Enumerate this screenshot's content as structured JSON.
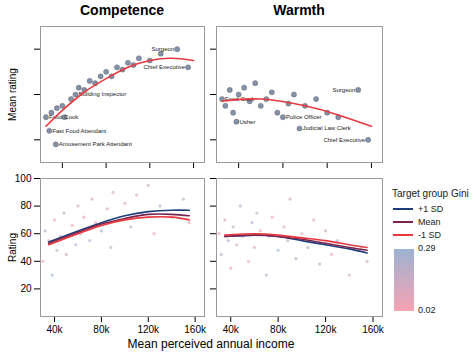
{
  "chart_data": [
    {
      "type": "scatter",
      "title": "Competence",
      "ylabel": "Mean rating",
      "xlim": [
        20000,
        170000
      ],
      "xticks": [
        40000,
        80000,
        120000,
        160000
      ],
      "ylim": [
        30,
        90
      ],
      "yticks": [
        40,
        60,
        80
      ],
      "tick_labels": false,
      "series": [
        {
          "type": "scatter",
          "color": "#6d7f99",
          "x": [
            25000,
            28000,
            34000,
            30000,
            35000,
            40000,
            42000,
            48000,
            52000,
            55000,
            60000,
            65000,
            70000,
            75000,
            80000,
            85000,
            90000,
            95000,
            100000,
            105000,
            110000,
            120000,
            130000,
            145000,
            155000
          ],
          "values": [
            50,
            44,
            38,
            52,
            54,
            55,
            50,
            58,
            60,
            63,
            62,
            66,
            65,
            68,
            70,
            68,
            72,
            71,
            74,
            73,
            76,
            75,
            78,
            80,
            72
          ],
          "labels": [
            "Food Cook",
            "Fast Food Attendant",
            "Amusement Park Attendant",
            null,
            null,
            null,
            null,
            null,
            "Building Inspector",
            null,
            null,
            null,
            null,
            null,
            null,
            null,
            null,
            null,
            null,
            null,
            null,
            null,
            null,
            "Surgeon",
            "Chief Executive"
          ]
        },
        {
          "type": "line",
          "color": "#e8393e",
          "x": [
            25000,
            40000,
            60000,
            80000,
            100000,
            120000,
            140000,
            160000
          ],
          "values": [
            46,
            53,
            61,
            67,
            72,
            75,
            76,
            75
          ]
        }
      ]
    },
    {
      "type": "scatter",
      "title": "Warmth",
      "xlim": [
        20000,
        170000
      ],
      "xticks": [
        40000,
        80000,
        120000,
        160000
      ],
      "ylim": [
        30,
        90
      ],
      "yticks": [
        40,
        60,
        80
      ],
      "tick_labels": false,
      "series": [
        {
          "type": "scatter",
          "color": "#6d7f99",
          "x": [
            25000,
            28000,
            32000,
            35000,
            38000,
            40000,
            45000,
            50000,
            55000,
            60000,
            65000,
            70000,
            75000,
            80000,
            85000,
            90000,
            95000,
            100000,
            110000,
            120000,
            130000,
            148000,
            157000
          ],
          "values": [
            58,
            55,
            62,
            52,
            48,
            60,
            63,
            57,
            65,
            55,
            58,
            61,
            52,
            50,
            56,
            60,
            45,
            55,
            58,
            52,
            50,
            62,
            40
          ],
          "labels": [
            "Food Cook",
            null,
            null,
            null,
            "Usher",
            null,
            null,
            null,
            null,
            null,
            null,
            null,
            null,
            "Police Officer",
            null,
            null,
            "Judicial Law Clerk",
            null,
            null,
            null,
            null,
            "Surgeon",
            "Chief Executive"
          ]
        },
        {
          "type": "line",
          "color": "#e8393e",
          "x": [
            25000,
            60000,
            100000,
            130000,
            160000
          ],
          "values": [
            57,
            58,
            55,
            51,
            46
          ]
        }
      ]
    },
    {
      "type": "scatter",
      "ylabel": "Rating",
      "xlabel": "Mean perceived annual income",
      "xlim": [
        28000,
        168000
      ],
      "xticks": [
        {
          "value": 40000,
          "label": "40k"
        },
        {
          "value": 80000,
          "label": "80k"
        },
        {
          "value": 120000,
          "label": "120k"
        },
        {
          "value": 160000,
          "label": "160k"
        }
      ],
      "ylim": [
        0,
        100
      ],
      "yticks": [
        20,
        40,
        60,
        80,
        100
      ],
      "colorbar": {
        "range": [
          0.02,
          0.29
        ],
        "ticks": [
          0.02,
          0.29
        ],
        "colors": [
          "#f6a3b2",
          "#9db3d2"
        ]
      },
      "series": [
        {
          "type": "scatter",
          "x": [
            30000,
            32000,
            35000,
            38000,
            40000,
            42000,
            45000,
            48000,
            50000,
            55000,
            58000,
            60000,
            62000,
            65000,
            70000,
            72000,
            75000,
            80000,
            85000,
            88000,
            90000,
            95000,
            100000,
            105000,
            110000,
            115000,
            120000,
            125000,
            130000,
            140000,
            150000,
            155000
          ],
          "values": [
            40,
            62,
            55,
            30,
            70,
            48,
            58,
            75,
            45,
            66,
            52,
            80,
            60,
            72,
            55,
            85,
            68,
            62,
            78,
            50,
            90,
            70,
            82,
            65,
            88,
            74,
            95,
            60,
            80,
            72,
            85,
            68
          ],
          "gini": [
            0.05,
            0.22,
            0.12,
            0.28,
            0.03,
            0.18,
            0.09,
            0.25,
            0.15,
            0.04,
            0.27,
            0.11,
            0.2,
            0.06,
            0.24,
            0.14,
            0.02,
            0.29,
            0.08,
            0.19,
            0.13,
            0.26,
            0.07,
            0.21,
            0.1,
            0.23,
            0.16,
            0.05,
            0.28,
            0.12,
            0.17,
            0.09
          ]
        },
        {
          "name": "+1 SD",
          "type": "line",
          "color": "#1f3f7a",
          "x": [
            35000,
            60000,
            80000,
            100000,
            120000,
            140000,
            155000
          ],
          "values": [
            54,
            62,
            68,
            73,
            76,
            77,
            77
          ]
        },
        {
          "name": "Mean",
          "type": "line",
          "color": "#7a2550",
          "x": [
            35000,
            60000,
            80000,
            100000,
            120000,
            140000,
            155000
          ],
          "values": [
            53,
            61,
            67,
            71,
            74,
            74,
            73
          ]
        },
        {
          "name": "-1 SD",
          "type": "line",
          "color": "#e8393e",
          "x": [
            35000,
            60000,
            80000,
            100000,
            120000,
            140000,
            155000
          ],
          "values": [
            52,
            60,
            66,
            70,
            72,
            72,
            70
          ]
        }
      ]
    },
    {
      "type": "scatter",
      "xlim": [
        28000,
        168000
      ],
      "xticks": [
        {
          "value": 40000,
          "label": "40k"
        },
        {
          "value": 80000,
          "label": "80k"
        },
        {
          "value": 120000,
          "label": "120k"
        },
        {
          "value": 160000,
          "label": "160k"
        }
      ],
      "ylim": [
        0,
        100
      ],
      "yticks": [
        20,
        40,
        60,
        80,
        100
      ],
      "tick_labels": "x",
      "legend": "right",
      "legend_title": "Target group Gini",
      "colorbar": {
        "range": [
          0.02,
          0.29
        ],
        "ticks": [
          0.02,
          0.29
        ],
        "colors": [
          "#f6a3b2",
          "#9db3d2"
        ]
      },
      "series": [
        {
          "type": "scatter",
          "x": [
            30000,
            32000,
            35000,
            38000,
            40000,
            42000,
            45000,
            48000,
            50000,
            55000,
            58000,
            60000,
            62000,
            65000,
            70000,
            72000,
            75000,
            80000,
            85000,
            88000,
            90000,
            95000,
            100000,
            105000,
            110000,
            115000,
            120000,
            125000,
            130000,
            140000,
            150000,
            155000
          ],
          "values": [
            60,
            45,
            70,
            55,
            35,
            65,
            52,
            80,
            58,
            40,
            68,
            50,
            75,
            62,
            30,
            58,
            72,
            48,
            65,
            55,
            85,
            42,
            60,
            50,
            70,
            38,
            62,
            45,
            55,
            30,
            50,
            40
          ],
          "gini": [
            0.05,
            0.22,
            0.12,
            0.28,
            0.03,
            0.18,
            0.09,
            0.25,
            0.15,
            0.04,
            0.27,
            0.11,
            0.2,
            0.06,
            0.24,
            0.14,
            0.02,
            0.29,
            0.08,
            0.19,
            0.13,
            0.26,
            0.07,
            0.21,
            0.1,
            0.23,
            0.16,
            0.05,
            0.28,
            0.12,
            0.17,
            0.09
          ]
        },
        {
          "name": "+1 SD",
          "type": "line",
          "color": "#1f3f7a",
          "x": [
            35000,
            60000,
            80000,
            100000,
            120000,
            140000,
            155000
          ],
          "values": [
            58,
            59,
            58,
            55,
            52,
            49,
            46
          ]
        },
        {
          "name": "Mean",
          "type": "line",
          "color": "#7a2550",
          "x": [
            35000,
            60000,
            80000,
            100000,
            120000,
            140000,
            155000
          ],
          "values": [
            58,
            59,
            58,
            56,
            53,
            50,
            48
          ]
        },
        {
          "name": "-1 SD",
          "type": "line",
          "color": "#e8393e",
          "x": [
            35000,
            60000,
            80000,
            100000,
            120000,
            140000,
            155000
          ],
          "values": [
            59,
            60,
            59,
            57,
            55,
            52,
            50
          ]
        }
      ]
    }
  ]
}
